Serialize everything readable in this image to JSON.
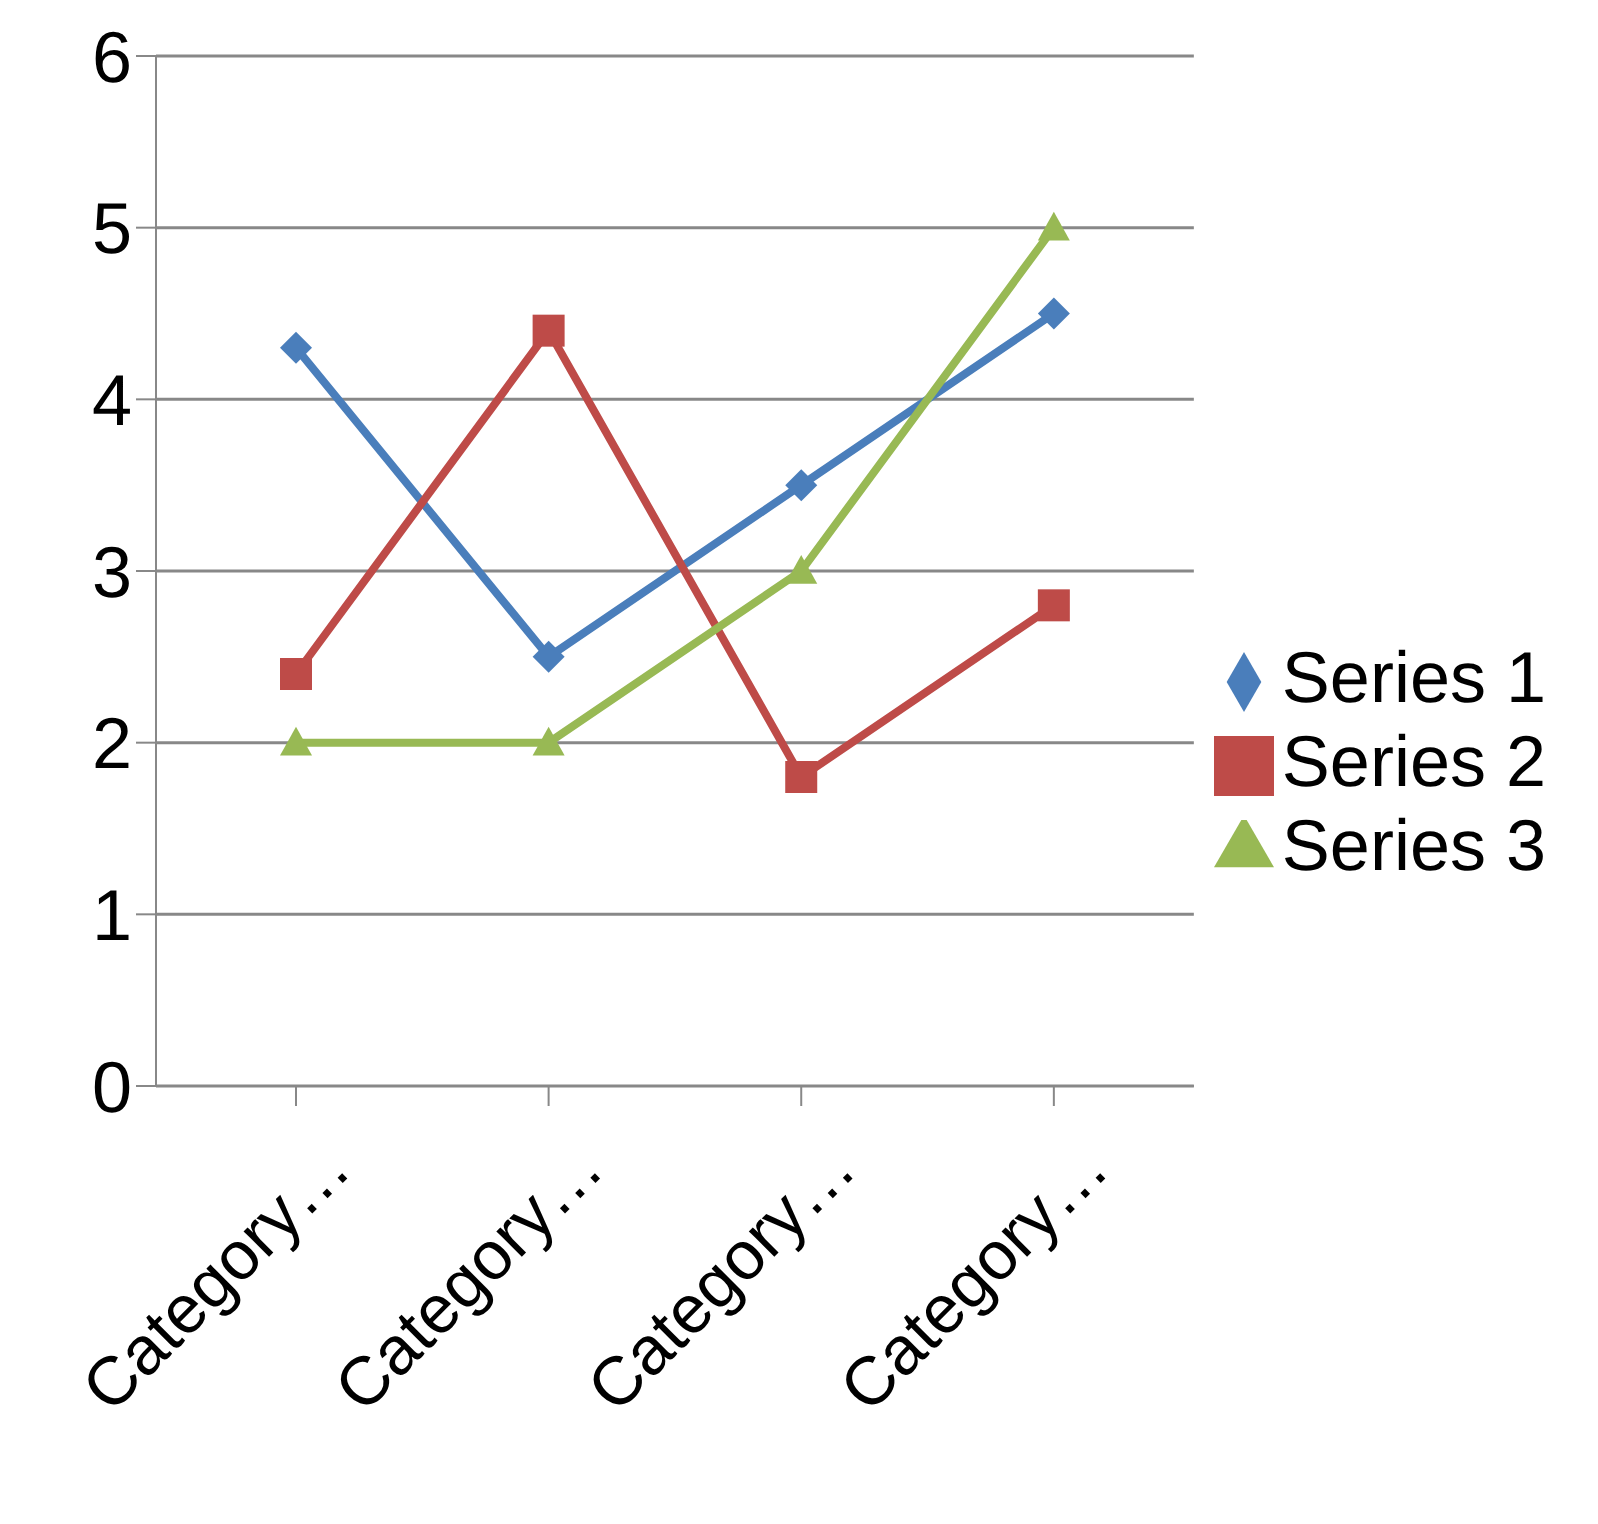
{
  "chart_data": {
    "type": "line",
    "categories": [
      "Category…",
      "Category…",
      "Category…",
      "Category…"
    ],
    "series": [
      {
        "name": "Series 1",
        "color": "#4a7ebb",
        "marker": "diamond",
        "values": [
          4.3,
          2.5,
          3.5,
          4.5
        ]
      },
      {
        "name": "Series 2",
        "color": "#be4b48",
        "marker": "square",
        "values": [
          2.4,
          4.4,
          1.8,
          2.8
        ]
      },
      {
        "name": "Series 3",
        "color": "#98b954",
        "marker": "triangle",
        "values": [
          2,
          2,
          3,
          5
        ]
      }
    ],
    "ylim": [
      0,
      6
    ],
    "yticks": [
      0,
      1,
      2,
      3,
      4,
      5,
      6
    ],
    "grid": "y",
    "legend": "right"
  }
}
